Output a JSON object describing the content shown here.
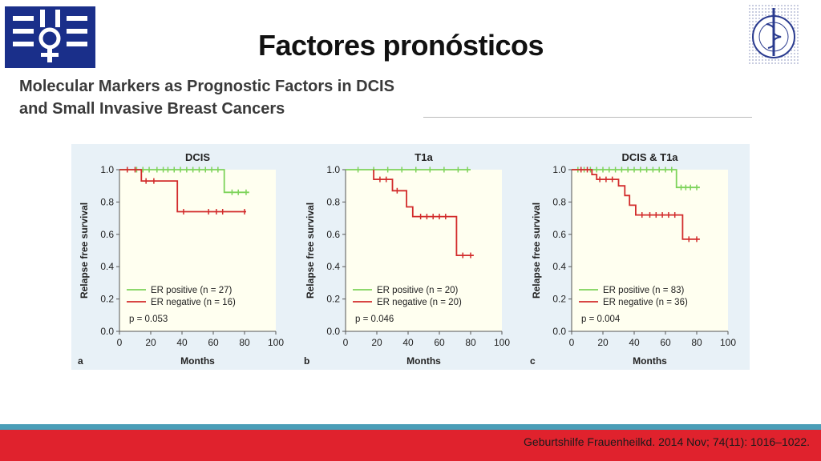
{
  "slide": {
    "title": "Factores pronósticos",
    "figure_title_line1": "Molecular Markers as Prognostic Factors in DCIS",
    "figure_title_line2": "and Small Invasive Breast Cancers",
    "citation": "Geburtshilfe Frauenheilkd. 2014 Nov; 74(11): 1016–1022."
  },
  "colors": {
    "er_positive": "#7dd35a",
    "er_negative": "#d22b2b",
    "panel_background": "#e8f1f7",
    "plot_background": "#fffff0",
    "footer_red": "#e0222d",
    "footer_teal": "#4a9eb8",
    "logo_blue": "#1a2f8a"
  },
  "logos": {
    "left": "institute-logo",
    "right": "instituto-nacional-de-cancerologia-seal"
  },
  "chart_data": [
    {
      "type": "line",
      "panel_letter": "a",
      "title": "DCIS",
      "xlabel": "Months",
      "ylabel": "Relapse free survival",
      "xlim": [
        0,
        100
      ],
      "ylim": [
        0,
        1.0
      ],
      "xticks": [
        0,
        20,
        40,
        60,
        80,
        100
      ],
      "yticks": [
        "0.0",
        "0.2",
        "0.4",
        "0.6",
        "0.8",
        "1.0"
      ],
      "p_value": "p = 0.053",
      "legend_position": "bottom-left",
      "series": [
        {
          "name": "ER positive (n = 27)",
          "color": "#7dd35a",
          "steps": [
            [
              0,
              1.0
            ],
            [
              67,
              1.0
            ],
            [
              67,
              0.86
            ],
            [
              83,
              0.86
            ]
          ],
          "censored": [
            [
              5,
              1.0
            ],
            [
              11,
              1.0
            ],
            [
              15,
              1.0
            ],
            [
              19,
              1.0
            ],
            [
              24,
              1.0
            ],
            [
              28,
              1.0
            ],
            [
              31,
              1.0
            ],
            [
              35,
              1.0
            ],
            [
              39,
              1.0
            ],
            [
              43,
              1.0
            ],
            [
              47,
              1.0
            ],
            [
              51,
              1.0
            ],
            [
              55,
              1.0
            ],
            [
              59,
              1.0
            ],
            [
              63,
              1.0
            ],
            [
              72,
              0.86
            ],
            [
              76,
              0.86
            ],
            [
              81,
              0.86
            ]
          ]
        },
        {
          "name": "ER negative (n = 16)",
          "color": "#d22b2b",
          "steps": [
            [
              0,
              1.0
            ],
            [
              14,
              1.0
            ],
            [
              14,
              0.93
            ],
            [
              37,
              0.93
            ],
            [
              37,
              0.74
            ],
            [
              81,
              0.74
            ]
          ],
          "censored": [
            [
              5,
              1.0
            ],
            [
              10,
              1.0
            ],
            [
              17,
              0.93
            ],
            [
              22,
              0.93
            ],
            [
              41,
              0.74
            ],
            [
              57,
              0.74
            ],
            [
              62,
              0.74
            ],
            [
              66,
              0.74
            ],
            [
              80,
              0.74
            ]
          ]
        }
      ]
    },
    {
      "type": "line",
      "panel_letter": "b",
      "title": "T1a",
      "xlabel": "Months",
      "ylabel": "Relapse free survival",
      "xlim": [
        0,
        100
      ],
      "ylim": [
        0,
        1.0
      ],
      "xticks": [
        0,
        20,
        40,
        60,
        80,
        100
      ],
      "yticks": [
        "0.0",
        "0.2",
        "0.4",
        "0.6",
        "0.8",
        "1.0"
      ],
      "p_value": "p = 0.046",
      "legend_position": "bottom-left",
      "series": [
        {
          "name": "ER positive (n = 20)",
          "color": "#7dd35a",
          "steps": [
            [
              0,
              1.0
            ],
            [
              80,
              1.0
            ]
          ],
          "censored": [
            [
              8,
              1.0
            ],
            [
              18,
              1.0
            ],
            [
              27,
              1.0
            ],
            [
              36,
              1.0
            ],
            [
              45,
              1.0
            ],
            [
              54,
              1.0
            ],
            [
              63,
              1.0
            ],
            [
              72,
              1.0
            ],
            [
              78,
              1.0
            ]
          ]
        },
        {
          "name": "ER negative (n = 20)",
          "color": "#d22b2b",
          "steps": [
            [
              18,
              1.0
            ],
            [
              18,
              0.94
            ],
            [
              30,
              0.94
            ],
            [
              30,
              0.87
            ],
            [
              39,
              0.87
            ],
            [
              39,
              0.77
            ],
            [
              43,
              0.77
            ],
            [
              43,
              0.71
            ],
            [
              71,
              0.71
            ],
            [
              71,
              0.47
            ],
            [
              82,
              0.47
            ]
          ],
          "censored": [
            [
              22,
              0.94
            ],
            [
              26,
              0.94
            ],
            [
              33,
              0.87
            ],
            [
              48,
              0.71
            ],
            [
              52,
              0.71
            ],
            [
              56,
              0.71
            ],
            [
              60,
              0.71
            ],
            [
              64,
              0.71
            ],
            [
              75,
              0.47
            ],
            [
              80,
              0.47
            ]
          ]
        }
      ]
    },
    {
      "type": "line",
      "panel_letter": "c",
      "title": "DCIS & T1a",
      "xlabel": "Months",
      "ylabel": "Relapse free survival",
      "xlim": [
        0,
        100
      ],
      "ylim": [
        0,
        1.0
      ],
      "xticks": [
        0,
        20,
        40,
        60,
        80,
        100
      ],
      "yticks": [
        "0.0",
        "0.2",
        "0.4",
        "0.6",
        "0.8",
        "1.0"
      ],
      "p_value": "p = 0.004",
      "legend_position": "bottom-left",
      "series": [
        {
          "name": "ER positive (n = 83)",
          "color": "#7dd35a",
          "steps": [
            [
              0,
              1.0
            ],
            [
              67,
              1.0
            ],
            [
              67,
              0.89
            ],
            [
              82,
              0.89
            ]
          ],
          "censored": [
            [
              4,
              1.0
            ],
            [
              8,
              1.0
            ],
            [
              12,
              1.0
            ],
            [
              16,
              1.0
            ],
            [
              20,
              1.0
            ],
            [
              24,
              1.0
            ],
            [
              28,
              1.0
            ],
            [
              32,
              1.0
            ],
            [
              36,
              1.0
            ],
            [
              40,
              1.0
            ],
            [
              44,
              1.0
            ],
            [
              48,
              1.0
            ],
            [
              52,
              1.0
            ],
            [
              56,
              1.0
            ],
            [
              60,
              1.0
            ],
            [
              64,
              1.0
            ],
            [
              70,
              0.89
            ],
            [
              73,
              0.89
            ],
            [
              76,
              0.89
            ],
            [
              80,
              0.89
            ]
          ]
        },
        {
          "name": "ER negative (n = 36)",
          "color": "#d22b2b",
          "steps": [
            [
              0,
              1.0
            ],
            [
              13,
              1.0
            ],
            [
              13,
              0.97
            ],
            [
              16,
              0.97
            ],
            [
              16,
              0.94
            ],
            [
              30,
              0.94
            ],
            [
              30,
              0.9
            ],
            [
              34,
              0.9
            ],
            [
              34,
              0.84
            ],
            [
              37,
              0.84
            ],
            [
              37,
              0.78
            ],
            [
              41,
              0.78
            ],
            [
              41,
              0.72
            ],
            [
              71,
              0.72
            ],
            [
              71,
              0.57
            ],
            [
              82,
              0.57
            ]
          ],
          "censored": [
            [
              6,
              1.0
            ],
            [
              10,
              1.0
            ],
            [
              18,
              0.94
            ],
            [
              22,
              0.94
            ],
            [
              26,
              0.94
            ],
            [
              45,
              0.72
            ],
            [
              50,
              0.72
            ],
            [
              54,
              0.72
            ],
            [
              58,
              0.72
            ],
            [
              62,
              0.72
            ],
            [
              66,
              0.72
            ],
            [
              75,
              0.57
            ],
            [
              80,
              0.57
            ]
          ]
        }
      ]
    }
  ]
}
